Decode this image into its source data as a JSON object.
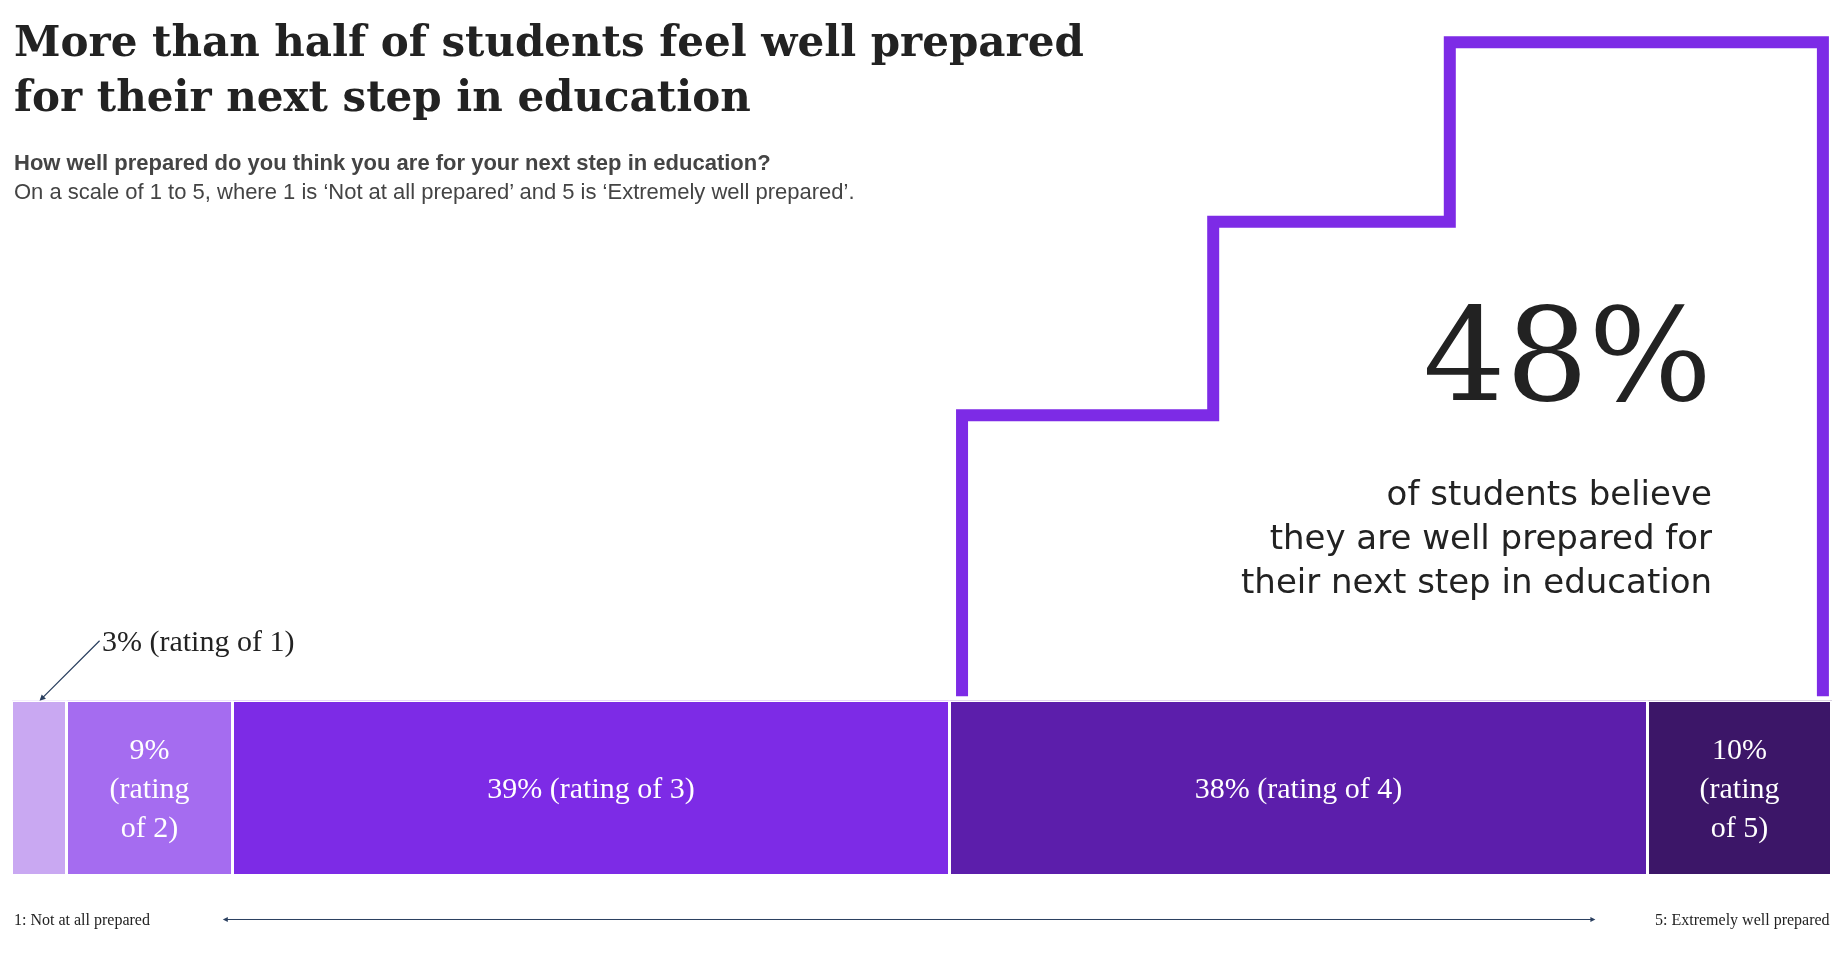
{
  "chart_data": {
    "type": "bar",
    "orientation": "horizontal",
    "stacked": true,
    "title": "More than half of students feel well prepared for their next step in education",
    "subtitle": "How well prepared do you think you are for your next step in education?\nOn a scale of 1 to 5, where 1 is ‘Not at all prepared’ and 5 is ‘Extremely well prepared’.",
    "categories": [
      null
    ],
    "xlim": [
      0,
      99
    ],
    "series": [
      {
        "color": "#c9a8f2",
        "values": [
          3
        ],
        "value_labels": [
          "3% (rating of 1)"
        ]
      },
      {
        "color": "#a56cf0",
        "values": [
          9
        ],
        "value_labels": [
          "9%\n(rating\nof 2)"
        ]
      },
      {
        "color": "#7d2be6",
        "values": [
          39
        ],
        "value_labels": [
          "39% (rating of 3)"
        ]
      },
      {
        "color": "#5c1eab",
        "values": [
          38
        ],
        "value_labels": [
          "38% (rating of 4)"
        ]
      },
      {
        "color": "#3c1668",
        "values": [
          10
        ],
        "value_labels": [
          "10%\n(rating\nof 5)"
        ]
      }
    ],
    "annotations": [
      "48%",
      "of students believe\nthey are well prepared for\ntheir next step in education",
      "1: Not at all prepared",
      "5: Extremely well prepared"
    ]
  }
}
